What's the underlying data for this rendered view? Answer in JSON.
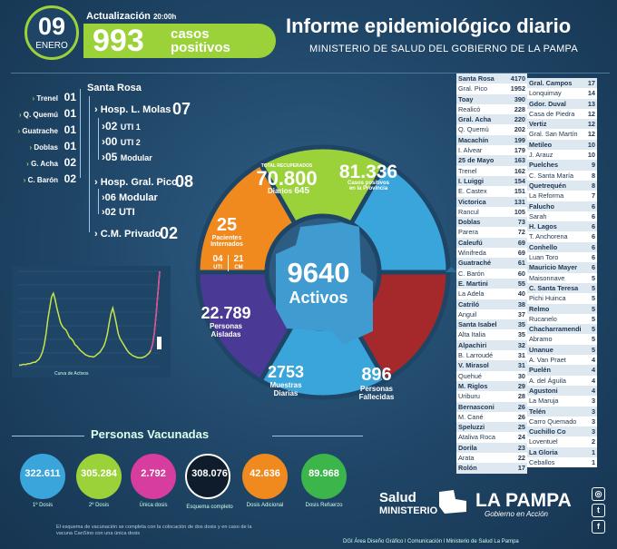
{
  "header": {
    "day": "09",
    "month": "ENERO",
    "update_label": "Actualización",
    "update_time": "20:00h",
    "cases_value": "993",
    "cases_label_line1": "casos",
    "cases_label_line2": "positivos",
    "title": "Informe epidemiológico diario",
    "subtitle": "MINISTERIO DE SALUD DEL GOBIERNO DE LA PAMPA"
  },
  "left_list": [
    {
      "name": "Trenel",
      "value": "01"
    },
    {
      "name": "Q. Quemú",
      "value": "01"
    },
    {
      "name": "Guatrache",
      "value": "01"
    },
    {
      "name": "Doblas",
      "value": "01"
    },
    {
      "name": "G. Acha",
      "value": "02"
    },
    {
      "name": "C. Barón",
      "value": "02"
    }
  ],
  "santa_rosa": {
    "title": "Santa Rosa",
    "molas_label": "Hosp. L. Molas",
    "molas_value": "07",
    "molas_items": [
      {
        "value": "02",
        "label": "UTI 1"
      },
      {
        "value": "00",
        "label": "UTI 2"
      },
      {
        "value": "05",
        "label": "Modular"
      }
    ],
    "pico_label": "Hosp. Gral. Pico",
    "pico_value": "08",
    "pico_items": [
      {
        "value": "06",
        "label": "Modular"
      },
      {
        "value": "02",
        "label": "UTI"
      }
    ],
    "privado_label": "C.M. Privado",
    "privado_value": "02"
  },
  "graph": {
    "caption": "Curva de Activos",
    "last_label": "9640"
  },
  "chart_data": {
    "type": "line",
    "title": "",
    "xlabel": "Curva de Activos",
    "ylabel": "",
    "series": [
      {
        "values": [
          2,
          2,
          3,
          3,
          3,
          4,
          4,
          5,
          6,
          6,
          8,
          10,
          14,
          20,
          30,
          45,
          65,
          80,
          95,
          100,
          92,
          80,
          70,
          60,
          55,
          52,
          50,
          45,
          40,
          38,
          35,
          30,
          28,
          25,
          22,
          20,
          18,
          16,
          15,
          14,
          14,
          13,
          14,
          16,
          18,
          20,
          24,
          28,
          35,
          45,
          60,
          72,
          80,
          70,
          58,
          45,
          38,
          34,
          30,
          26,
          22,
          19,
          17,
          15,
          14,
          13,
          12,
          12,
          12,
          13,
          14,
          16,
          18,
          22,
          30,
          45,
          70,
          100,
          130
        ]
      }
    ]
  },
  "donut": {
    "recovered_label": "TOTAL RECUPERADOS",
    "recovered_value": "70.800",
    "recovered_sub_label": "Diarios",
    "recovered_sub_value": "645",
    "province_cases_value": "81.336",
    "province_cases_label1": "Casos positivos",
    "province_cases_label2": "en la Provincia",
    "interned_value": "25",
    "interned_label1": "Pacientes",
    "interned_label2": "Internados",
    "uti_value": "04",
    "uti_label": "UTI",
    "cm_value": "21",
    "cm_label": "CM",
    "isolated_value": "22.789",
    "isolated_label1": "Personas",
    "isolated_label2": "Aisladas",
    "samples_value": "2753",
    "samples_label1": "Muestras",
    "samples_label2": "Diarias",
    "deceased_value": "896",
    "deceased_label1": "Personas",
    "deceased_label2": "Fallecidas",
    "active_value": "9640",
    "active_label": "Activos",
    "colors": {
      "recovered": "#9bd23a",
      "province": "#3aa5da",
      "interned": "#f08a1e",
      "isolated": "#4b3a95",
      "samples": "#3aa5da",
      "deceased": "#a5292b"
    }
  },
  "table_left": [
    [
      "Santa Rosa",
      "4170"
    ],
    [
      "Gral. Pico",
      "1952"
    ],
    [
      "Toay",
      "390"
    ],
    [
      "Realicó",
      "228"
    ],
    [
      "Gral. Acha",
      "220"
    ],
    [
      "Q. Quemú",
      "202"
    ],
    [
      "Macachín",
      "199"
    ],
    [
      "I. Alvear",
      "179"
    ],
    [
      "25 de Mayo",
      "163"
    ],
    [
      "Trenel",
      "162"
    ],
    [
      "I. Luiggi",
      "154"
    ],
    [
      "E. Castex",
      "151"
    ],
    [
      "Victorica",
      "131"
    ],
    [
      "Rancul",
      "105"
    ],
    [
      "Doblas",
      "73"
    ],
    [
      "Parera",
      "72"
    ],
    [
      "Caleufú",
      "69"
    ],
    [
      "Winifreda",
      "69"
    ],
    [
      "Guatraché",
      "61"
    ],
    [
      "C. Barón",
      "60"
    ],
    [
      "E. Martini",
      "55"
    ],
    [
      "La Adela",
      "40"
    ],
    [
      "Catriló",
      "38"
    ],
    [
      "Anguil",
      "37"
    ],
    [
      "Santa Isabel",
      "35"
    ],
    [
      "Alta Italia",
      "35"
    ],
    [
      "Alpachiri",
      "32"
    ],
    [
      "B. Larroudé",
      "31"
    ],
    [
      "V. Mirasol",
      "31"
    ],
    [
      "Quehué",
      "30"
    ],
    [
      "M. Riglos",
      "29"
    ],
    [
      "Uriburu",
      "28"
    ],
    [
      "Bernasconi",
      "26"
    ],
    [
      "M. Cané",
      "26"
    ],
    [
      "Speluzzi",
      "25"
    ],
    [
      "Ataliva Roca",
      "24"
    ],
    [
      "Dorila",
      "23"
    ],
    [
      "Arata",
      "22"
    ],
    [
      "Rolón",
      "17"
    ]
  ],
  "table_right": [
    [
      "Gral. Campos",
      "17"
    ],
    [
      "Lonquimay",
      "14"
    ],
    [
      "Gdor. Duval",
      "13"
    ],
    [
      "Casa de Piedra",
      "12"
    ],
    [
      "Vertiz",
      "12"
    ],
    [
      "Gral. San Martín",
      "12"
    ],
    [
      "Metileo",
      "10"
    ],
    [
      "J. Arauz",
      "10"
    ],
    [
      "Puelches",
      "9"
    ],
    [
      "C. Santa María",
      "8"
    ],
    [
      "Quetrequén",
      "8"
    ],
    [
      "La Reforma",
      "7"
    ],
    [
      "Falucho",
      "6"
    ],
    [
      "Sarah",
      "6"
    ],
    [
      "H. Lagos",
      "6"
    ],
    [
      "T. Anchorena",
      "6"
    ],
    [
      "Conhello",
      "6"
    ],
    [
      "Luan Toro",
      "6"
    ],
    [
      "Mauricio Mayer",
      "6"
    ],
    [
      "Maisonnave",
      "5"
    ],
    [
      "C. Santa Teresa",
      "5"
    ],
    [
      "Pichi Huinca",
      "5"
    ],
    [
      "Relmo",
      "5"
    ],
    [
      "Rucanelo",
      "5"
    ],
    [
      "Chacharramendi",
      "5"
    ],
    [
      "Abramo",
      "5"
    ],
    [
      "Unanue",
      "5"
    ],
    [
      "A. Van Praet",
      "4"
    ],
    [
      "Puelén",
      "4"
    ],
    [
      "A. del Águila",
      "4"
    ],
    [
      "Agustoni",
      "4"
    ],
    [
      "La Maruja",
      "3"
    ],
    [
      "Telén",
      "3"
    ],
    [
      "Carro Quemado",
      "3"
    ],
    [
      "Cuchillo Co",
      "3"
    ],
    [
      "Loventuel",
      "2"
    ],
    [
      "La Gloria",
      "1"
    ],
    [
      "Ceballos",
      "1"
    ]
  ],
  "vaccination": {
    "title": "Personas Vacunadas",
    "items": [
      {
        "value": "322.611",
        "label": "1º Dosis",
        "color": "#3aa5da"
      },
      {
        "value": "305.284",
        "label": "2º Dosis",
        "color": "#9bd23a"
      },
      {
        "value": "2.792",
        "label": "Única dosis",
        "color": "#d63d9c"
      },
      {
        "value": "308.076",
        "label": "Esquema completo",
        "color": "#0f1c2b"
      },
      {
        "value": "42.636",
        "label": "Dosis Adicional",
        "color": "#f08a1e"
      },
      {
        "value": "89.968",
        "label": "Dosis Refuerzo",
        "color": "#3cb54a"
      }
    ],
    "footnote": "El esquema de vacunación se completa con la colocación de dos dosis y en caso de la vacuna CanSino con una única dosis"
  },
  "footer": {
    "salud": "Salud",
    "ministerio": "MINISTERIO",
    "la_pampa": "LA PAMPA",
    "gobierno": "Gobierno en Acción",
    "credits": "DGI Área Diseño Gráfico  l  Comunicación  l  Ministerio de Salud La Pampa",
    "social": [
      "instagram-icon",
      "twitter-icon",
      "facebook-icon"
    ]
  }
}
